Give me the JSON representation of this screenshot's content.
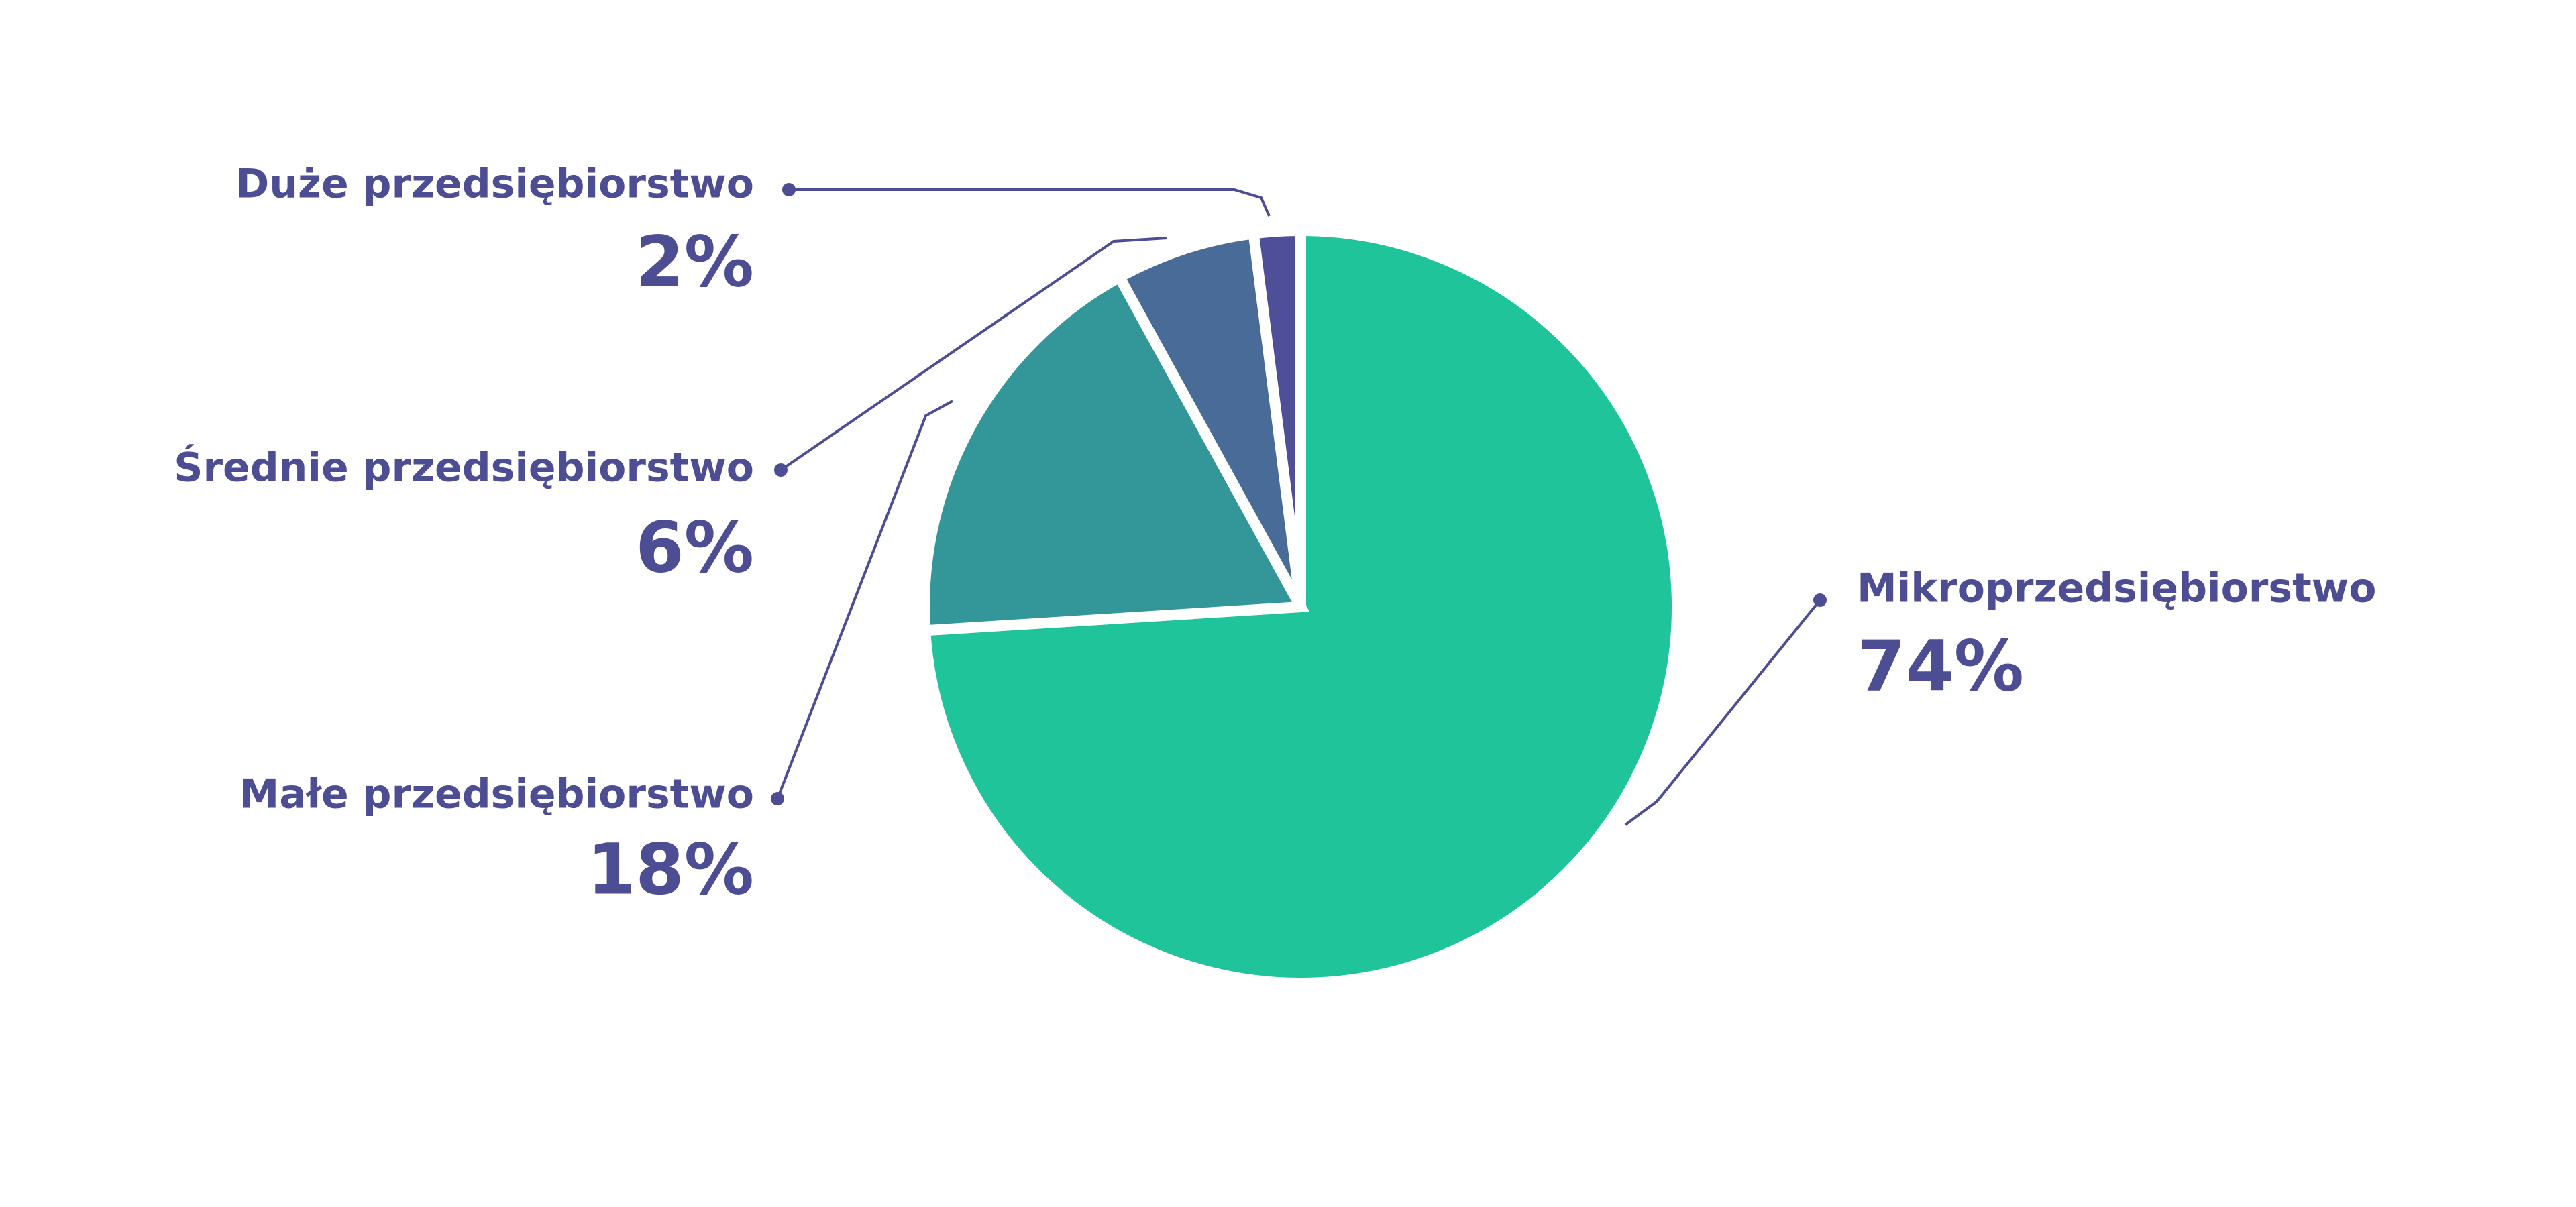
{
  "chart_data": {
    "type": "pie",
    "categories": [
      "Mikroprzedsiębiorstwo",
      "Małe przedsiębiorstwo",
      "Średnie przedsiębiorstwo",
      "Duże przedsiębiorstwo"
    ],
    "values": [
      74,
      18,
      6,
      2
    ],
    "value_labels": [
      "74%",
      "18%",
      "6%",
      "2%"
    ],
    "colors": [
      "#1fc49a",
      "#33979a",
      "#486b97",
      "#4f4f99"
    ]
  }
}
